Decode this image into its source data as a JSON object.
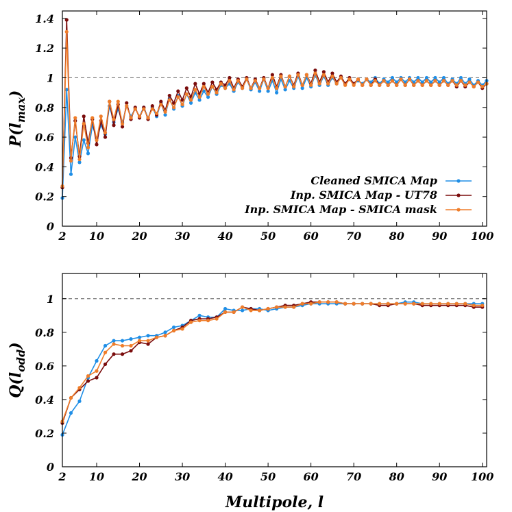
{
  "chart_data": [
    {
      "type": "line",
      "ylabel_main": "P(l",
      "ylabel_sub": "max",
      "ylabel_close": ")",
      "xlim": [
        2,
        101
      ],
      "ylim": [
        0,
        1.45
      ],
      "xticks": [
        2,
        10,
        20,
        30,
        40,
        50,
        60,
        70,
        80,
        90,
        100
      ],
      "yticks": [
        0,
        0.2,
        0.4,
        0.6,
        0.8,
        1,
        1.2,
        1.4
      ],
      "ytick_labels": [
        "0",
        "0.2",
        "0.4",
        "0.6",
        "0.8",
        "1",
        "1.2",
        "1.4"
      ],
      "reference_line": 1,
      "legend_position": "bottom-right",
      "x": [
        2,
        3,
        4,
        5,
        6,
        7,
        8,
        9,
        10,
        11,
        12,
        13,
        14,
        15,
        16,
        17,
        18,
        19,
        20,
        21,
        22,
        23,
        24,
        25,
        26,
        27,
        28,
        29,
        30,
        31,
        32,
        33,
        34,
        35,
        36,
        37,
        38,
        39,
        40,
        41,
        42,
        43,
        44,
        45,
        46,
        47,
        48,
        49,
        50,
        51,
        52,
        53,
        54,
        55,
        56,
        57,
        58,
        59,
        60,
        61,
        62,
        63,
        64,
        65,
        66,
        67,
        68,
        69,
        70,
        71,
        72,
        73,
        74,
        75,
        76,
        77,
        78,
        79,
        80,
        81,
        82,
        83,
        84,
        85,
        86,
        87,
        88,
        89,
        90,
        91,
        92,
        93,
        94,
        95,
        96,
        97,
        98,
        99,
        100,
        101
      ],
      "series": [
        {
          "name": "Cleaned SMICA Map",
          "color": "#1f8ee6",
          "values": [
            0.19,
            0.92,
            0.35,
            0.6,
            0.43,
            0.58,
            0.49,
            0.68,
            0.59,
            0.68,
            0.62,
            0.81,
            0.7,
            0.79,
            0.7,
            0.81,
            0.74,
            0.79,
            0.74,
            0.8,
            0.73,
            0.8,
            0.74,
            0.83,
            0.75,
            0.86,
            0.79,
            0.88,
            0.81,
            0.89,
            0.83,
            0.9,
            0.85,
            0.91,
            0.87,
            0.94,
            0.89,
            0.95,
            0.93,
            0.96,
            0.91,
            0.97,
            0.93,
            0.99,
            0.92,
            0.97,
            0.91,
            0.99,
            0.91,
            0.98,
            0.9,
            0.99,
            0.92,
            0.98,
            0.93,
            1.01,
            0.93,
            1.0,
            0.94,
            1.02,
            0.95,
            1.01,
            0.95,
            1.0,
            0.96,
            1.0,
            0.96,
            0.99,
            0.96,
            0.98,
            0.96,
            0.99,
            0.97,
            1.0,
            0.96,
            0.99,
            0.97,
            1.0,
            0.97,
            1.0,
            0.97,
            1.0,
            0.97,
            1.0,
            0.97,
            1.0,
            0.97,
            1.0,
            0.97,
            1.0,
            0.96,
            0.99,
            0.96,
            1.0,
            0.96,
            0.99,
            0.95,
            0.98,
            0.95,
            0.98
          ]
        },
        {
          "name": "Inp. SMICA Map - UT78",
          "color": "#7a0c0c",
          "values": [
            0.26,
            1.39,
            0.46,
            0.71,
            0.47,
            0.74,
            0.56,
            0.72,
            0.55,
            0.71,
            0.6,
            0.84,
            0.68,
            0.82,
            0.67,
            0.83,
            0.72,
            0.8,
            0.73,
            0.8,
            0.72,
            0.81,
            0.75,
            0.84,
            0.78,
            0.88,
            0.83,
            0.91,
            0.85,
            0.93,
            0.87,
            0.96,
            0.89,
            0.96,
            0.9,
            0.97,
            0.92,
            0.97,
            0.95,
            1.0,
            0.93,
            0.99,
            0.94,
            1.0,
            0.93,
            0.99,
            0.93,
            1.0,
            0.93,
            1.02,
            0.94,
            1.02,
            0.94,
            1.01,
            0.95,
            1.03,
            0.95,
            1.02,
            0.96,
            1.05,
            0.97,
            1.04,
            0.97,
            1.03,
            0.97,
            1.01,
            0.96,
            1.0,
            0.96,
            0.99,
            0.95,
            0.99,
            0.95,
            0.99,
            0.95,
            0.98,
            0.95,
            0.98,
            0.95,
            0.99,
            0.95,
            0.99,
            0.95,
            0.98,
            0.95,
            0.98,
            0.95,
            0.98,
            0.95,
            0.98,
            0.95,
            0.98,
            0.94,
            0.98,
            0.94,
            0.97,
            0.94,
            0.97,
            0.93,
            0.96
          ]
        },
        {
          "name": "Inp. SMICA Map - SMICA mask",
          "color": "#ef7d2a",
          "values": [
            0.27,
            1.31,
            0.44,
            0.73,
            0.45,
            0.69,
            0.53,
            0.73,
            0.58,
            0.74,
            0.63,
            0.84,
            0.72,
            0.84,
            0.69,
            0.81,
            0.73,
            0.79,
            0.74,
            0.79,
            0.73,
            0.79,
            0.76,
            0.82,
            0.77,
            0.85,
            0.8,
            0.87,
            0.82,
            0.89,
            0.85,
            0.92,
            0.87,
            0.94,
            0.89,
            0.94,
            0.9,
            0.96,
            0.93,
            0.98,
            0.92,
            0.98,
            0.93,
            0.99,
            0.93,
            0.98,
            0.93,
            0.99,
            0.93,
            1.0,
            0.93,
            1.01,
            0.94,
            1.01,
            0.94,
            1.02,
            0.95,
            1.02,
            0.95,
            1.03,
            0.96,
            1.02,
            0.96,
            1.01,
            0.96,
            1.0,
            0.95,
            0.99,
            0.95,
            0.99,
            0.95,
            0.99,
            0.95,
            0.98,
            0.95,
            0.98,
            0.95,
            0.98,
            0.95,
            0.99,
            0.95,
            0.99,
            0.95,
            0.98,
            0.95,
            0.98,
            0.95,
            0.98,
            0.95,
            0.98,
            0.95,
            0.98,
            0.95,
            0.98,
            0.95,
            0.97,
            0.94,
            0.97,
            0.94,
            0.96
          ]
        }
      ]
    },
    {
      "type": "line",
      "ylabel_main": "Q(l",
      "ylabel_sub": "odd",
      "ylabel_close": ")",
      "xlabel": "Multipole, l",
      "xlim": [
        2,
        101
      ],
      "ylim": [
        0,
        1.15
      ],
      "xticks": [
        2,
        10,
        20,
        30,
        40,
        50,
        60,
        70,
        80,
        90,
        100
      ],
      "yticks": [
        0,
        0.2,
        0.4,
        0.6,
        0.8,
        1
      ],
      "ytick_labels": [
        "0",
        "0.2",
        "0.4",
        "0.6",
        "0.8",
        "1"
      ],
      "reference_line": 1,
      "x": [
        2,
        4,
        6,
        8,
        10,
        12,
        14,
        16,
        18,
        20,
        22,
        24,
        26,
        28,
        30,
        32,
        34,
        36,
        38,
        40,
        42,
        44,
        46,
        48,
        50,
        52,
        54,
        56,
        58,
        60,
        62,
        64,
        66,
        68,
        70,
        72,
        74,
        76,
        78,
        80,
        82,
        84,
        86,
        88,
        90,
        92,
        94,
        96,
        98,
        100
      ],
      "series": [
        {
          "name": "Cleaned SMICA Map",
          "color": "#1f8ee6",
          "values": [
            0.19,
            0.32,
            0.39,
            0.53,
            0.63,
            0.72,
            0.75,
            0.75,
            0.76,
            0.77,
            0.78,
            0.78,
            0.8,
            0.83,
            0.84,
            0.87,
            0.9,
            0.89,
            0.89,
            0.94,
            0.93,
            0.93,
            0.94,
            0.94,
            0.93,
            0.94,
            0.95,
            0.95,
            0.96,
            0.97,
            0.97,
            0.97,
            0.97,
            0.97,
            0.97,
            0.97,
            0.97,
            0.97,
            0.97,
            0.97,
            0.98,
            0.98,
            0.97,
            0.97,
            0.97,
            0.97,
            0.97,
            0.97,
            0.97,
            0.97
          ]
        },
        {
          "name": "Inp. SMICA Map - UT78",
          "color": "#7a0c0c",
          "values": [
            0.26,
            0.41,
            0.46,
            0.51,
            0.53,
            0.61,
            0.67,
            0.67,
            0.69,
            0.74,
            0.73,
            0.77,
            0.78,
            0.81,
            0.83,
            0.87,
            0.88,
            0.88,
            0.89,
            0.92,
            0.92,
            0.95,
            0.94,
            0.93,
            0.94,
            0.95,
            0.96,
            0.96,
            0.97,
            0.98,
            0.98,
            0.98,
            0.98,
            0.97,
            0.97,
            0.97,
            0.97,
            0.96,
            0.96,
            0.97,
            0.97,
            0.97,
            0.96,
            0.96,
            0.96,
            0.96,
            0.96,
            0.96,
            0.95,
            0.95
          ]
        },
        {
          "name": "Inp. SMICA Map - SMICA mask",
          "color": "#ef7d2a",
          "values": [
            0.27,
            0.41,
            0.47,
            0.54,
            0.57,
            0.68,
            0.73,
            0.72,
            0.72,
            0.75,
            0.75,
            0.77,
            0.78,
            0.81,
            0.82,
            0.86,
            0.87,
            0.87,
            0.88,
            0.92,
            0.92,
            0.95,
            0.93,
            0.93,
            0.94,
            0.95,
            0.95,
            0.95,
            0.97,
            0.97,
            0.98,
            0.98,
            0.98,
            0.97,
            0.97,
            0.97,
            0.97,
            0.97,
            0.97,
            0.97,
            0.97,
            0.97,
            0.97,
            0.97,
            0.97,
            0.97,
            0.97,
            0.97,
            0.96,
            0.96
          ]
        }
      ]
    }
  ]
}
